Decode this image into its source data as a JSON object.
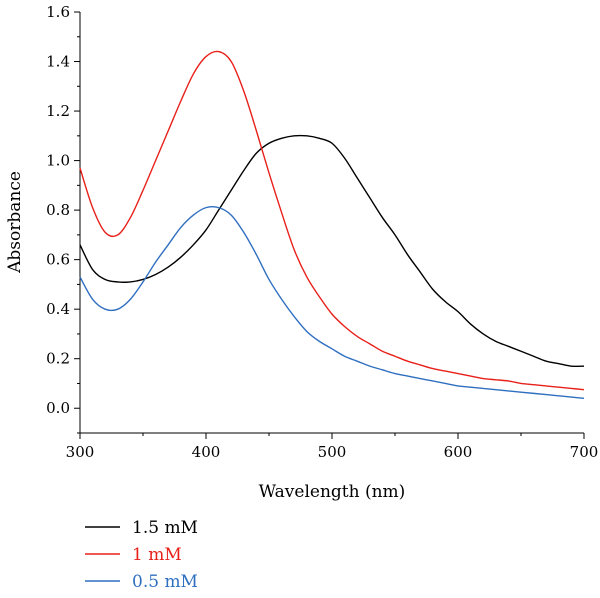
{
  "chart_data": {
    "type": "line",
    "xlabel": "Wavelength (nm)",
    "ylabel": "Absorbance",
    "xlim": [
      300,
      700
    ],
    "ylim": [
      -0.1,
      1.6
    ],
    "xticks": [
      300,
      400,
      500,
      600,
      700
    ],
    "yticks": [
      "0.0",
      "0.2",
      "0.4",
      "0.6",
      "0.8",
      "1.0",
      "1.2",
      "1.4",
      "1.6"
    ],
    "grid": false,
    "legend_position": "bottom-left",
    "series": [
      {
        "name": "1.5 mM",
        "color": "#000000",
        "x": [
          300,
          310,
          320,
          330,
          340,
          350,
          360,
          370,
          380,
          390,
          400,
          410,
          420,
          430,
          440,
          450,
          460,
          470,
          480,
          490,
          500,
          510,
          520,
          530,
          540,
          550,
          560,
          570,
          580,
          590,
          600,
          610,
          620,
          630,
          640,
          650,
          660,
          670,
          680,
          690,
          700
        ],
        "y": [
          0.66,
          0.56,
          0.52,
          0.51,
          0.51,
          0.52,
          0.54,
          0.57,
          0.61,
          0.66,
          0.72,
          0.8,
          0.88,
          0.96,
          1.03,
          1.07,
          1.09,
          1.1,
          1.1,
          1.09,
          1.07,
          1.01,
          0.93,
          0.85,
          0.77,
          0.7,
          0.62,
          0.55,
          0.48,
          0.43,
          0.39,
          0.34,
          0.3,
          0.27,
          0.25,
          0.23,
          0.21,
          0.19,
          0.18,
          0.17,
          0.17
        ]
      },
      {
        "name": "1 mM",
        "color": "#e8201a",
        "x": [
          300,
          310,
          320,
          330,
          340,
          350,
          360,
          370,
          380,
          390,
          400,
          410,
          420,
          430,
          440,
          450,
          460,
          470,
          480,
          490,
          500,
          510,
          520,
          530,
          540,
          550,
          560,
          570,
          580,
          590,
          600,
          610,
          620,
          630,
          640,
          650,
          660,
          670,
          680,
          690,
          700
        ],
        "y": [
          0.97,
          0.81,
          0.71,
          0.7,
          0.77,
          0.88,
          1.0,
          1.12,
          1.24,
          1.35,
          1.42,
          1.44,
          1.4,
          1.28,
          1.12,
          0.95,
          0.79,
          0.64,
          0.53,
          0.45,
          0.38,
          0.33,
          0.29,
          0.26,
          0.23,
          0.21,
          0.19,
          0.175,
          0.16,
          0.15,
          0.14,
          0.13,
          0.12,
          0.115,
          0.11,
          0.1,
          0.095,
          0.09,
          0.085,
          0.08,
          0.075
        ]
      },
      {
        "name": "0.5 mM",
        "color": "#2f6fc0",
        "x": [
          300,
          310,
          320,
          330,
          340,
          350,
          360,
          370,
          380,
          390,
          400,
          410,
          420,
          430,
          440,
          450,
          460,
          470,
          480,
          490,
          500,
          510,
          520,
          530,
          540,
          550,
          560,
          570,
          580,
          590,
          600,
          610,
          620,
          630,
          640,
          650,
          660,
          670,
          680,
          690,
          700
        ],
        "y": [
          0.53,
          0.44,
          0.4,
          0.4,
          0.44,
          0.51,
          0.59,
          0.66,
          0.73,
          0.78,
          0.81,
          0.81,
          0.78,
          0.71,
          0.62,
          0.52,
          0.44,
          0.37,
          0.31,
          0.27,
          0.24,
          0.21,
          0.19,
          0.17,
          0.155,
          0.14,
          0.13,
          0.12,
          0.11,
          0.1,
          0.09,
          0.085,
          0.08,
          0.075,
          0.07,
          0.065,
          0.06,
          0.055,
          0.05,
          0.045,
          0.04
        ]
      }
    ]
  }
}
